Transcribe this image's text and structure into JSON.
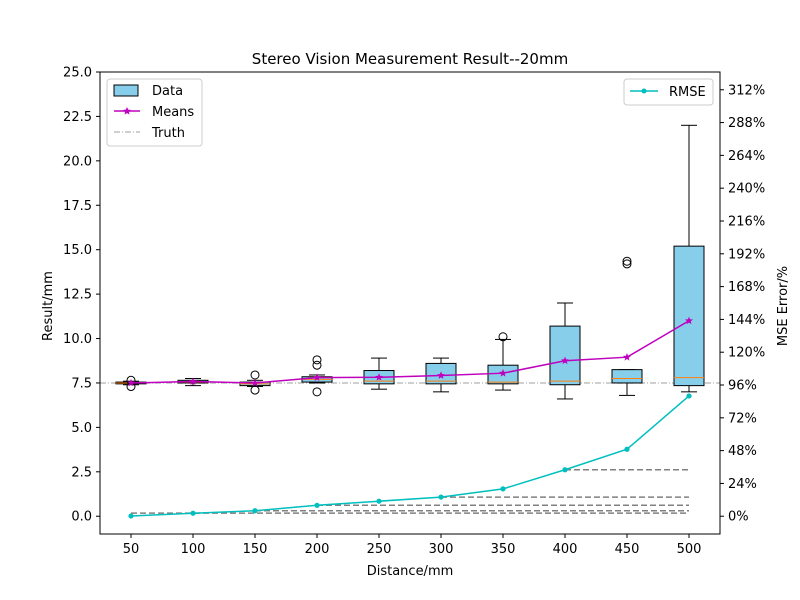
{
  "chart_data": {
    "type": "box",
    "title": "Stereo Vision Measurement Result--20mm",
    "xlabel": "Distance/mm",
    "ylabel": "Result/mm",
    "y2label": "MSE Error/%",
    "categories": [
      "50",
      "100",
      "150",
      "200",
      "250",
      "300",
      "350",
      "400",
      "450",
      "500"
    ],
    "ylim": [
      -1.0,
      25.0
    ],
    "yticks": [
      "0.0",
      "2.5",
      "5.0",
      "7.5",
      "10.0",
      "12.5",
      "15.0",
      "17.5",
      "20.0",
      "22.5",
      "25.0"
    ],
    "y2ticks": [
      "0%",
      "24%",
      "48%",
      "72%",
      "96%",
      "120%",
      "144%",
      "168%",
      "192%",
      "216%",
      "240%",
      "264%",
      "288%",
      "312%"
    ],
    "y2lim": [
      -13.0,
      325.0
    ],
    "truth": 7.5,
    "boxes": [
      {
        "q1": 7.45,
        "median": 7.5,
        "q3": 7.55,
        "whislo": 7.4,
        "whishi": 7.6,
        "fliers": [
          7.3,
          7.65
        ]
      },
      {
        "q1": 7.5,
        "median": 7.55,
        "q3": 7.65,
        "whislo": 7.35,
        "whishi": 7.75,
        "fliers": []
      },
      {
        "q1": 7.35,
        "median": 7.45,
        "q3": 7.55,
        "whislo": 7.3,
        "whishi": 7.65,
        "fliers": [
          7.1,
          7.95
        ]
      },
      {
        "q1": 7.55,
        "median": 7.7,
        "q3": 7.85,
        "whislo": 7.5,
        "whishi": 7.95,
        "fliers": [
          7.0,
          8.5,
          8.8
        ]
      },
      {
        "q1": 7.45,
        "median": 7.6,
        "q3": 8.2,
        "whislo": 7.15,
        "whishi": 8.9,
        "fliers": []
      },
      {
        "q1": 7.45,
        "median": 7.6,
        "q3": 8.6,
        "whislo": 7.0,
        "whishi": 8.9,
        "fliers": []
      },
      {
        "q1": 7.45,
        "median": 7.55,
        "q3": 8.5,
        "whislo": 7.1,
        "whishi": 9.95,
        "fliers": [
          10.1
        ]
      },
      {
        "q1": 7.4,
        "median": 7.6,
        "q3": 10.7,
        "whislo": 6.6,
        "whishi": 12.0,
        "fliers": []
      },
      {
        "q1": 7.5,
        "median": 7.75,
        "q3": 8.25,
        "whislo": 6.8,
        "whishi": 8.25,
        "fliers": [
          14.2,
          14.35
        ]
      },
      {
        "q1": 7.35,
        "median": 7.8,
        "q3": 15.2,
        "whislo": 7.0,
        "whishi": 22.0,
        "fliers": []
      }
    ],
    "series": [
      {
        "name": "Means",
        "axis": "left",
        "marker": "star",
        "color": "#bf00bf",
        "values": [
          7.5,
          7.58,
          7.5,
          7.8,
          7.82,
          7.92,
          8.05,
          8.75,
          8.95,
          11.0
        ]
      },
      {
        "name": "RMSE",
        "axis": "right",
        "marker": "dot",
        "color": "#00bfbf",
        "values": [
          0.2,
          2.2,
          4.0,
          8.0,
          11.0,
          14.0,
          20.0,
          34.0,
          49.0,
          88.0
        ]
      }
    ],
    "dashed_reference_lines": [
      {
        "y2": 2.3,
        "from_category": "50",
        "to_category": "500"
      },
      {
        "y2": 4.0,
        "from_category": "150",
        "to_category": "500"
      },
      {
        "y2": 8.0,
        "from_category": "200",
        "to_category": "500"
      },
      {
        "y2": 14.0,
        "from_category": "300",
        "to_category": "500"
      },
      {
        "y2": 34.0,
        "from_category": "400",
        "to_category": "500"
      }
    ],
    "legend_left": {
      "placement": "upper-left",
      "entries": [
        "Data",
        "Means",
        "Truth"
      ]
    },
    "legend_right": {
      "placement": "upper-right",
      "entries": [
        "RMSE"
      ]
    },
    "colors": {
      "box_fill": "#87ceeb",
      "median": "#ff7f0e",
      "truth": "#bfbfbf",
      "dashed": "#808080",
      "axis": "#000000"
    }
  }
}
